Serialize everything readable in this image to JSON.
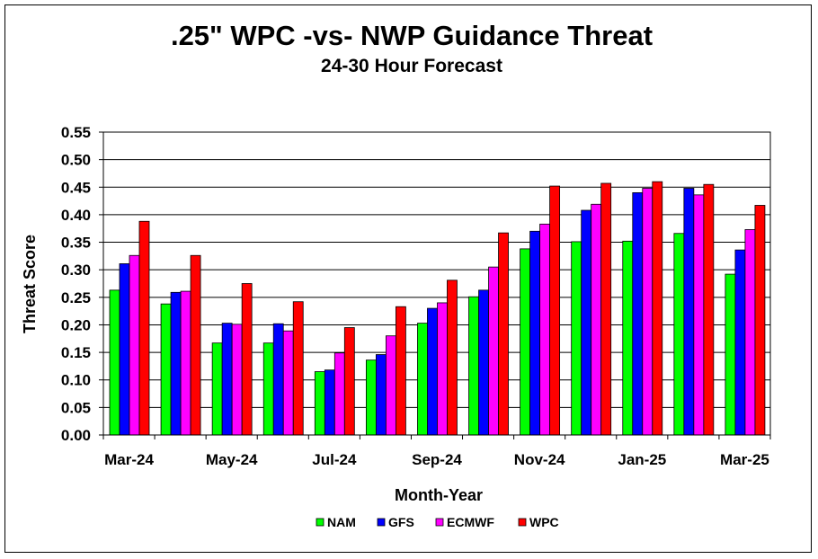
{
  "chart_data": {
    "type": "bar",
    "title": ".25\" WPC -vs- NWP Guidance Threat",
    "subtitle": "24-30 Hour Forecast",
    "xlabel": "Month-Year",
    "ylabel": "Threat Score",
    "ylim": [
      0,
      0.55
    ],
    "yticks": [
      "0.00",
      "0.05",
      "0.10",
      "0.15",
      "0.20",
      "0.25",
      "0.30",
      "0.35",
      "0.40",
      "0.45",
      "0.50",
      "0.55"
    ],
    "xtick_labels": [
      "Mar-24",
      "May-24",
      "Jul-24",
      "Sep-24",
      "Nov-24",
      "Jan-25",
      "Mar-25"
    ],
    "categories": [
      "Mar-24",
      "Apr-24",
      "May-24",
      "Jun-24",
      "Jul-24",
      "Aug-24",
      "Sep-24",
      "Oct-24",
      "Nov-24",
      "Dec-24",
      "Jan-25",
      "Feb-25",
      "Mar-25"
    ],
    "grid": true,
    "legend_position": "bottom",
    "series": [
      {
        "name": "NAM",
        "color": "#00ff00",
        "values": [
          0.263,
          0.238,
          0.167,
          0.167,
          0.115,
          0.136,
          0.203,
          0.251,
          0.338,
          0.351,
          0.352,
          0.366,
          0.292
        ]
      },
      {
        "name": "GFS",
        "color": "#0000ff",
        "values": [
          0.311,
          0.259,
          0.203,
          0.202,
          0.118,
          0.146,
          0.23,
          0.263,
          0.37,
          0.408,
          0.44,
          0.448,
          0.336
        ]
      },
      {
        "name": "ECMWF",
        "color": "#ff00ff",
        "values": [
          0.326,
          0.261,
          0.201,
          0.189,
          0.149,
          0.18,
          0.24,
          0.305,
          0.383,
          0.419,
          0.448,
          0.436,
          0.373
        ]
      },
      {
        "name": "WPC",
        "color": "#ff0000",
        "values": [
          0.388,
          0.326,
          0.275,
          0.242,
          0.195,
          0.233,
          0.281,
          0.367,
          0.452,
          0.457,
          0.46,
          0.455,
          0.417
        ]
      }
    ]
  }
}
